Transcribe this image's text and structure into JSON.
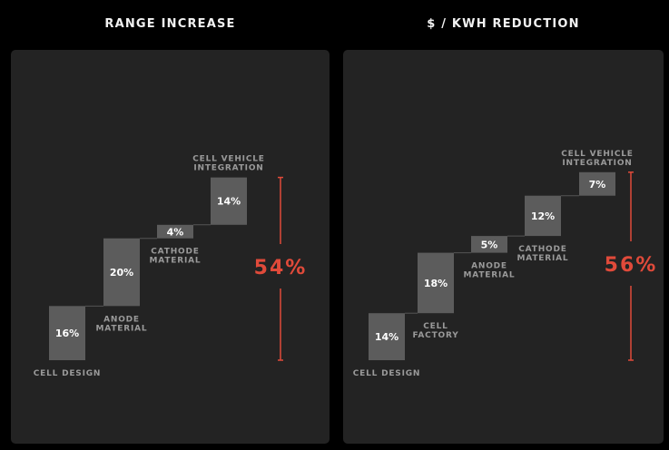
{
  "chart_data": [
    {
      "type": "waterfall",
      "title": "RANGE INCREASE",
      "categories": [
        "CELL DESIGN",
        "ANODE MATERIAL",
        "CATHODE MATERIAL",
        "CELL VEHICLE INTEGRATION"
      ],
      "values": [
        16,
        20,
        4,
        14
      ],
      "value_labels": [
        "16%",
        "20%",
        "4%",
        "14%"
      ],
      "total": 54,
      "total_label": "54%"
    },
    {
      "type": "waterfall",
      "title": "$ / KWH REDUCTION",
      "categories": [
        "CELL DESIGN",
        "CELL FACTORY",
        "ANODE MATERIAL",
        "CATHODE MATERIAL",
        "CELL VEHICLE INTEGRATION"
      ],
      "values": [
        14,
        18,
        5,
        12,
        7
      ],
      "value_labels": [
        "14%",
        "18%",
        "5%",
        "12%",
        "7%"
      ],
      "total": 56,
      "total_label": "56%"
    }
  ],
  "colors": {
    "bar": "#5c5c5c",
    "accent": "#e04a3a",
    "panel": "#232323"
  }
}
